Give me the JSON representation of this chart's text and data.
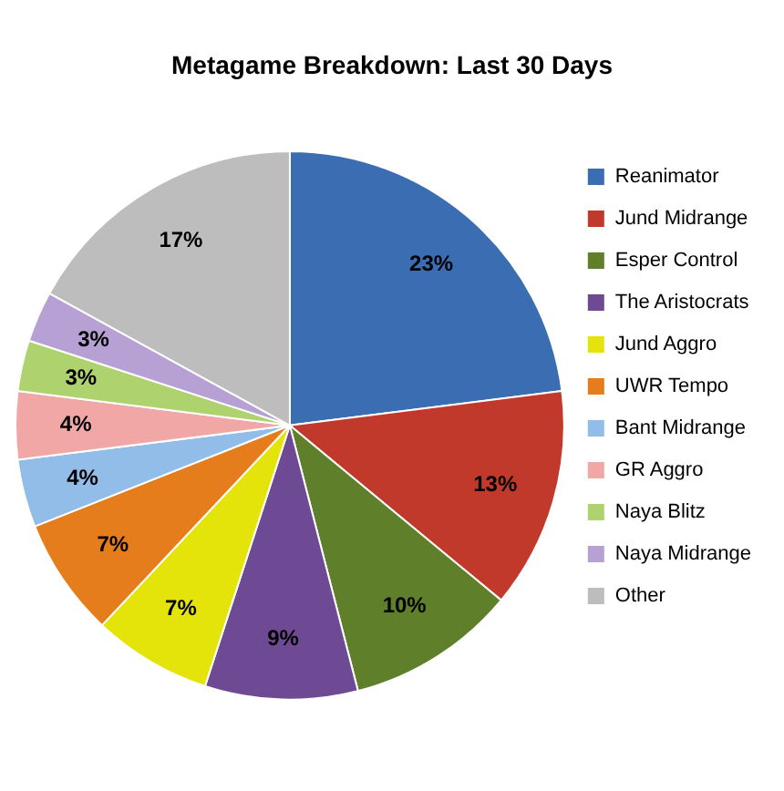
{
  "chart_data": {
    "type": "pie",
    "title": "Metagame Breakdown: Last 30 Days",
    "categories": [
      "Reanimator",
      "Jund Midrange",
      "Esper Control",
      "The Aristocrats",
      "Jund Aggro",
      "UWR Tempo",
      "Bant Midrange",
      "GR Aggro",
      "Naya Blitz",
      "Naya Midrange",
      "Other"
    ],
    "values": [
      23,
      13,
      10,
      9,
      7,
      7,
      4,
      4,
      3,
      3,
      17
    ],
    "colors": [
      "#3b6db3",
      "#c0392b",
      "#5f7f2a",
      "#6f4a94",
      "#e4e40a",
      "#e57d1c",
      "#92bde8",
      "#f2a7a7",
      "#aed26e",
      "#b7a0d4",
      "#bdbdbd"
    ],
    "value_labels": [
      "23%",
      "13%",
      "10%",
      "9%",
      "7%",
      "7%",
      "4%",
      "4%",
      "3%",
      "3%",
      "17%"
    ],
    "legend": "right"
  }
}
